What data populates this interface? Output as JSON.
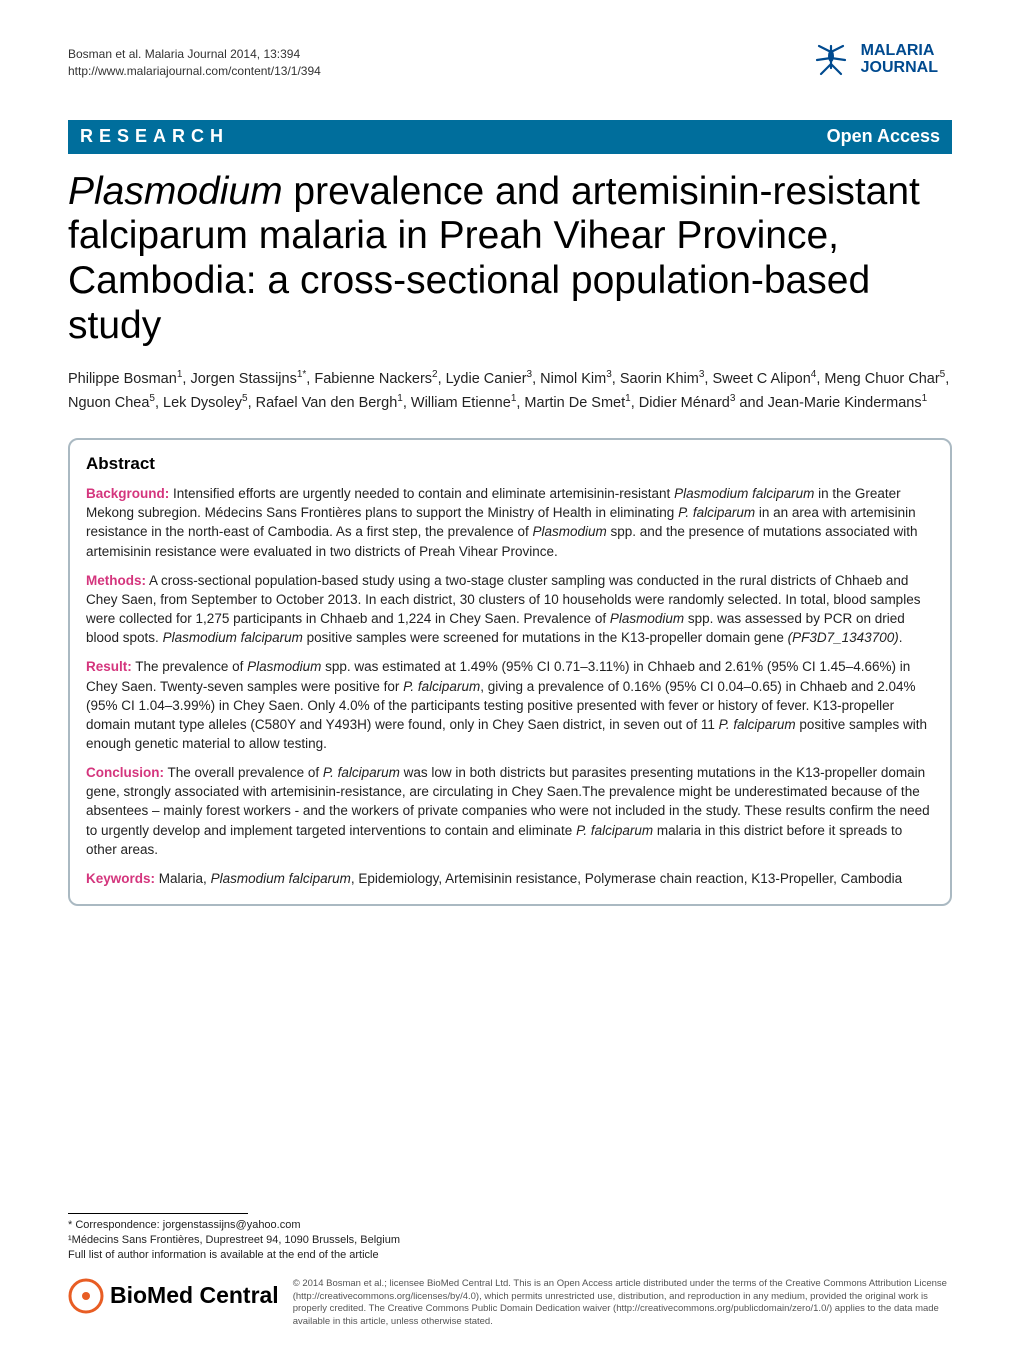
{
  "colors": {
    "bar_bg": "#006e9c",
    "bar_text": "#ffffff",
    "section_label": "#d4357d",
    "logo_blue": "#004a8f",
    "border": "#aab9c2",
    "text": "#000000",
    "muted": "#555555"
  },
  "header": {
    "citation_line1": "Bosman et al. Malaria Journal 2014, 13:394",
    "citation_line2": "http://www.malariajournal.com/content/13/1/394",
    "journal_name_line1": "MALARIA",
    "journal_name_line2": "JOURNAL"
  },
  "bar": {
    "left": "RESEARCH",
    "right": "Open Access"
  },
  "title": {
    "line1_italic": "Plasmodium",
    "line1_rest": " prevalence and artemisinin-resistant",
    "line2": "falciparum malaria in Preah Vihear Province,",
    "line3": "Cambodia: a cross-sectional population-based",
    "line4": "study"
  },
  "authors_html": "Philippe Bosman<sup>1</sup>, Jorgen Stassijns<sup>1*</sup>, Fabienne Nackers<sup>2</sup>, Lydie Canier<sup>3</sup>, Nimol Kim<sup>3</sup>, Saorin Khim<sup>3</sup>, Sweet C Alipon<sup>4</sup>, Meng Chuor Char<sup>5</sup>, Nguon Chea<sup>5</sup>, Lek Dysoley<sup>5</sup>, Rafael Van den Bergh<sup>1</sup>, William Etienne<sup>1</sup>, Martin De Smet<sup>1</sup>, Didier Ménard<sup>3</sup> and Jean-Marie Kindermans<sup>1</sup>",
  "abstract": {
    "heading": "Abstract",
    "background_label": "Background:",
    "background_text": " Intensified efforts are urgently needed to contain and eliminate artemisinin-resistant <span class=\"italic\">Plasmodium falciparum</span> in the Greater Mekong subregion. Médecins Sans Frontières plans to support the Ministry of Health in eliminating <span class=\"italic\">P. falciparum</span> in an area with artemisinin resistance in the north-east of Cambodia. As a first step, the prevalence of <span class=\"italic\">Plasmodium</span> spp. and the presence of mutations associated with artemisinin resistance were evaluated in two districts of Preah Vihear Province.",
    "methods_label": "Methods:",
    "methods_text": " A cross-sectional population-based study using a two-stage cluster sampling was conducted in the rural districts of Chhaeb and Chey Saen, from September to October 2013. In each district, 30 clusters of 10 households were randomly selected. In total, blood samples were collected for 1,275 participants in Chhaeb and 1,224 in Chey Saen. Prevalence of <span class=\"italic\">Plasmodium</span> spp. was assessed by PCR on dried blood spots. <span class=\"italic\">Plasmodium falciparum</span> positive samples were screened for mutations in the K13-propeller domain gene <span class=\"italic\">(PF3D7_1343700)</span>.",
    "result_label": "Result:",
    "result_text": " The prevalence of <span class=\"italic\">Plasmodium</span> spp. was estimated at 1.49% (95% CI 0.71–3.11%) in Chhaeb and 2.61% (95% CI 1.45–4.66%) in Chey Saen. Twenty-seven samples were positive for <span class=\"italic\">P. falciparum</span>, giving a prevalence of 0.16% (95% CI 0.04–0.65) in Chhaeb and 2.04% (95% CI 1.04–3.99%) in Chey Saen. Only 4.0% of the participants testing positive presented with fever or history of fever. K13-propeller domain mutant type alleles (C580Y and Y493H) were found, only in Chey Saen district, in seven out of 11 <span class=\"italic\">P. falciparum</span> positive samples with enough genetic material to allow testing.",
    "conclusion_label": "Conclusion:",
    "conclusion_text": " The overall prevalence of <span class=\"italic\">P. falciparum</span> was low in both districts but parasites presenting mutations in the K13-propeller domain gene, strongly associated with artemisinin-resistance, are circulating in Chey Saen.The prevalence might be underestimated because of the absentees – mainly forest workers - and the workers of private companies who were not included in the study. These results confirm the need to urgently develop and implement targeted interventions to contain and eliminate <span class=\"italic\">P. falciparum</span> malaria in this district before it spreads to other areas.",
    "keywords_label": "Keywords:",
    "keywords_text": " Malaria, <span class=\"italic\">Plasmodium falciparum</span>, Epidemiology, Artemisinin resistance, Polymerase chain reaction, K13-Propeller, Cambodia"
  },
  "footer": {
    "correspondence_line": "* Correspondence: jorgenstassijns@yahoo.com",
    "affiliation_line": "¹Médecins Sans Frontières, Duprestreet 94, 1090 Brussels, Belgium",
    "full_list_line": "Full list of author information is available at the end of the article",
    "biomed_brand": "BioMed Central",
    "copyright": "© 2014 Bosman et al.; licensee BioMed Central Ltd. This is an Open Access article distributed under the terms of the Creative Commons Attribution License (http://creativecommons.org/licenses/by/4.0), which permits unrestricted use, distribution, and reproduction in any medium, provided the original work is properly credited. The Creative Commons Public Domain Dedication waiver (http://creativecommons.org/publicdomain/zero/1.0/) applies to the data made available in this article, unless otherwise stated."
  }
}
